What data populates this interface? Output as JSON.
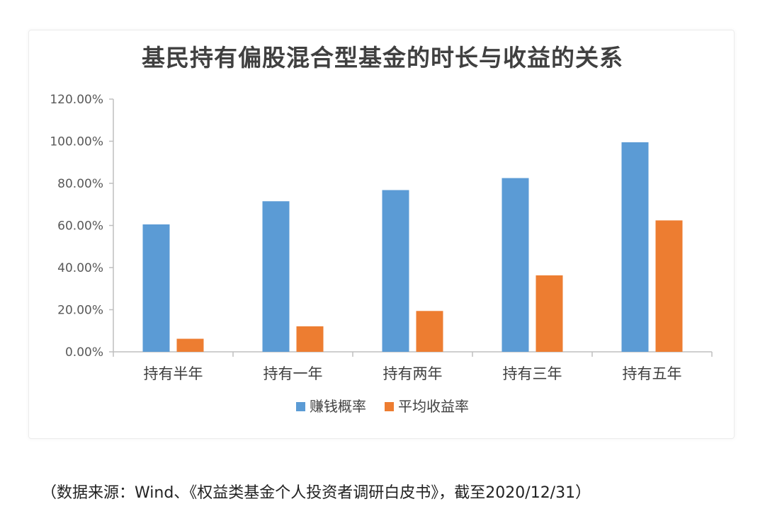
{
  "chart_data": {
    "type": "bar",
    "title": "基民持有偏股混合型基金的时长与收益的关系",
    "categories": [
      "持有半年",
      "持有一年",
      "持有两年",
      "持有三年",
      "持有五年"
    ],
    "series": [
      {
        "name": "赚钱概率",
        "color": "#5B9BD5",
        "values": [
          60.5,
          71.5,
          76.8,
          82.5,
          99.5
        ]
      },
      {
        "name": "平均收益率",
        "color": "#ED7D31",
        "values": [
          6.2,
          12.1,
          19.4,
          36.3,
          62.4
        ]
      }
    ],
    "y_ticks": [
      "0.00%",
      "20.00%",
      "40.00%",
      "60.00%",
      "80.00%",
      "100.00%",
      "120.00%"
    ],
    "ylim": [
      0,
      120
    ],
    "xlabel": "",
    "ylabel": "",
    "grid": false,
    "legend_position": "bottom"
  },
  "source_note": "（数据来源：Wind、《权益类基金个人投资者调研白皮书》，截至2020/12/31）"
}
